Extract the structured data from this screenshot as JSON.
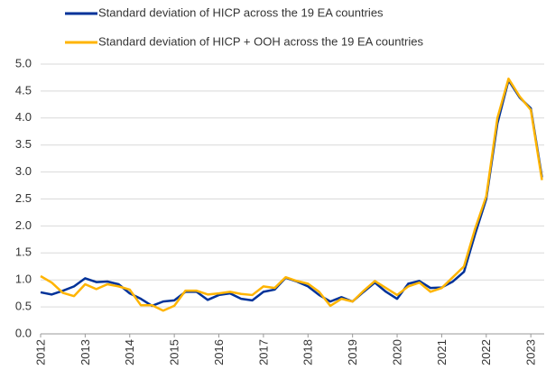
{
  "chart_data": {
    "type": "line",
    "x": [
      2012,
      2012.25,
      2012.5,
      2012.75,
      2013,
      2013.25,
      2013.5,
      2013.75,
      2014,
      2014.25,
      2014.5,
      2014.75,
      2015,
      2015.25,
      2015.5,
      2015.75,
      2016,
      2016.25,
      2016.5,
      2016.75,
      2017,
      2017.25,
      2017.5,
      2017.75,
      2018,
      2018.25,
      2018.5,
      2018.75,
      2019,
      2019.25,
      2019.5,
      2019.75,
      2020,
      2020.25,
      2020.5,
      2020.75,
      2021,
      2021.25,
      2021.5,
      2021.75,
      2022,
      2022.25,
      2022.5,
      2022.75,
      2023,
      2023.25
    ],
    "series": [
      {
        "name": "Standard deviation of HICP across the 19 EA countries",
        "color": "#003299",
        "values": [
          0.77,
          0.73,
          0.8,
          0.88,
          1.03,
          0.96,
          0.97,
          0.92,
          0.75,
          0.65,
          0.52,
          0.6,
          0.62,
          0.78,
          0.78,
          0.63,
          0.72,
          0.75,
          0.65,
          0.62,
          0.78,
          0.82,
          1.04,
          0.97,
          0.88,
          0.72,
          0.6,
          0.68,
          0.6,
          0.78,
          0.95,
          0.78,
          0.65,
          0.93,
          0.98,
          0.85,
          0.86,
          0.97,
          1.15,
          1.85,
          2.5,
          3.9,
          4.7,
          4.38,
          4.18,
          2.9
        ]
      },
      {
        "name": "Standard deviation of HICP + OOH across the 19 EA countries",
        "color": "#ffb400",
        "values": [
          1.07,
          0.95,
          0.76,
          0.7,
          0.92,
          0.83,
          0.92,
          0.88,
          0.82,
          0.53,
          0.53,
          0.43,
          0.52,
          0.8,
          0.8,
          0.73,
          0.75,
          0.78,
          0.74,
          0.72,
          0.88,
          0.85,
          1.05,
          0.98,
          0.93,
          0.78,
          0.52,
          0.65,
          0.6,
          0.8,
          0.98,
          0.85,
          0.72,
          0.88,
          0.95,
          0.78,
          0.85,
          1.05,
          1.25,
          1.95,
          2.55,
          4.0,
          4.73,
          4.4,
          4.15,
          2.85
        ]
      }
    ],
    "xlim": [
      2012,
      2023.3
    ],
    "xticks": [
      2012,
      2013,
      2014,
      2015,
      2016,
      2017,
      2018,
      2019,
      2020,
      2021,
      2022,
      2023
    ],
    "ylim": [
      0,
      5
    ],
    "yticks": [
      {
        "value": 0,
        "label": "0.0"
      },
      0.5,
      {
        "value": 1,
        "label": "1.0"
      },
      1.5,
      {
        "value": 2,
        "label": "2.0"
      },
      2.5,
      {
        "value": 3,
        "label": "3.0"
      },
      3.5,
      {
        "value": 4,
        "label": "4.0"
      },
      4.5,
      {
        "value": 5,
        "label": "5.0"
      }
    ],
    "grid": true,
    "legend": "top"
  }
}
